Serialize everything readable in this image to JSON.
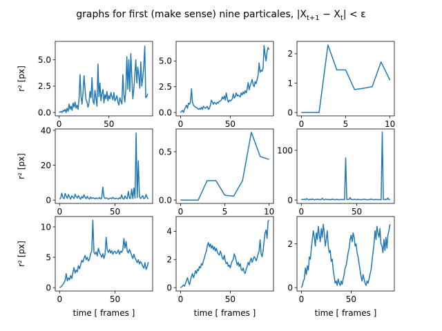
{
  "figure": {
    "title": "graphs for first (make sense) nine particales, |X",
    "title_sub1": "t+1",
    "title_mid": " − X",
    "title_sub2": "t",
    "title_end": "| < ε",
    "line_color": "#1f77b4"
  },
  "chart_data": [
    {
      "type": "line",
      "ylabel": "r² [px]",
      "xlabel": "",
      "xlim": [
        -3.9,
        93.9
      ],
      "ylim": [
        -0.32,
        6.75
      ],
      "xticks": [
        0,
        50
      ],
      "yticks": [
        0.0,
        2.5,
        5.0
      ],
      "ytick_labels": [
        "0.0",
        "2.5",
        "5.0"
      ],
      "x": [
        0,
        1,
        2,
        3,
        4,
        5,
        6,
        7,
        8,
        9,
        10,
        11,
        12,
        13,
        14,
        15,
        16,
        17,
        18,
        19,
        20,
        21,
        22,
        23,
        24,
        25,
        26,
        27,
        28,
        29,
        30,
        31,
        32,
        33,
        34,
        35,
        36,
        37,
        38,
        39,
        40,
        41,
        42,
        43,
        44,
        45,
        46,
        47,
        48,
        49,
        50,
        51,
        52,
        53,
        54,
        55,
        56,
        57,
        58,
        59,
        60,
        61,
        62,
        63,
        64,
        65,
        66,
        67,
        68,
        69,
        70,
        71,
        72,
        73,
        74,
        75,
        76,
        77,
        78,
        79,
        80,
        81,
        82,
        83,
        84,
        85,
        86,
        87,
        88,
        89
      ],
      "y": [
        0.0,
        0.05,
        0.1,
        0.0,
        0.2,
        0.1,
        0.3,
        0.0,
        0.4,
        0.1,
        0.8,
        0.3,
        0.6,
        0.2,
        0.9,
        0.5,
        1.0,
        0.4,
        0.7,
        0.3,
        1.3,
        3.6,
        1.5,
        0.8,
        1.9,
        3.5,
        2.2,
        1.2,
        1.0,
        0.5,
        0.9,
        2.0,
        1.4,
        3.3,
        1.1,
        0.8,
        2.1,
        1.3,
        0.6,
        4.6,
        1.5,
        2.8,
        1.1,
        1.8,
        2.2,
        0.9,
        1.7,
        1.3,
        2.0,
        1.1,
        1.6,
        1.3,
        1.9,
        1.5,
        1.2,
        1.9,
        1.1,
        1.3,
        1.6,
        1.0,
        0.7,
        1.4,
        1.1,
        0.8,
        3.6,
        1.7,
        1.0,
        2.2,
        5.3,
        2.2,
        5.0,
        2.0,
        5.6,
        3.4,
        1.3,
        2.2,
        3.6,
        5.0,
        2.8,
        4.3,
        3.5,
        2.3,
        4.8,
        2.5,
        3.3,
        4.4,
        6.3,
        1.4,
        1.5,
        1.8
      ]
    },
    {
      "type": "line",
      "ylabel": "",
      "xlabel": "",
      "xlim": [
        -4.45,
        93.45
      ],
      "ylim": [
        -0.33,
        6.9
      ],
      "xticks": [
        0,
        50
      ],
      "yticks": [
        0.0,
        2.5,
        5.0
      ],
      "ytick_labels": [
        "0.0",
        "2.5",
        "5.0"
      ],
      "x": [
        0,
        1,
        2,
        3,
        4,
        5,
        6,
        7,
        8,
        9,
        10,
        11,
        12,
        13,
        14,
        15,
        16,
        17,
        18,
        19,
        20,
        21,
        22,
        23,
        24,
        25,
        26,
        27,
        28,
        29,
        30,
        31,
        32,
        33,
        34,
        35,
        36,
        37,
        38,
        39,
        40,
        41,
        42,
        43,
        44,
        45,
        46,
        47,
        48,
        49,
        50,
        51,
        52,
        53,
        54,
        55,
        56,
        57,
        58,
        59,
        60,
        61,
        62,
        63,
        64,
        65,
        66,
        67,
        68,
        69,
        70,
        71,
        72,
        73,
        74,
        75,
        76,
        77,
        78,
        79,
        80,
        81,
        82,
        83,
        84,
        85,
        86,
        87,
        88,
        89
      ],
      "y": [
        0.0,
        0.1,
        0.2,
        0.0,
        0.3,
        0.5,
        0.7,
        0.4,
        0.9,
        0.8,
        1.0,
        2.3,
        1.0,
        0.7,
        0.6,
        0.5,
        0.5,
        0.4,
        0.3,
        0.4,
        0.3,
        0.5,
        0.3,
        0.6,
        0.5,
        0.4,
        0.5,
        0.6,
        0.3,
        0.4,
        0.7,
        1.2,
        1.0,
        0.8,
        1.0,
        0.9,
        0.8,
        1.0,
        0.9,
        1.1,
        1.1,
        1.2,
        1.5,
        1.3,
        1.6,
        1.2,
        1.9,
        1.3,
        1.0,
        1.2,
        1.1,
        1.2,
        1.3,
        1.8,
        1.4,
        1.5,
        1.9,
        1.6,
        1.7,
        1.6,
        1.5,
        1.9,
        1.7,
        2.0,
        1.8,
        2.1,
        1.9,
        2.3,
        2.9,
        2.2,
        2.6,
        2.9,
        3.2,
        2.7,
        2.5,
        3.0,
        2.8,
        3.2,
        3.6,
        4.8,
        3.9,
        4.1,
        4.0,
        4.3,
        6.5,
        5.6,
        5.0,
        5.9,
        6.3,
        6.1
      ]
    },
    {
      "type": "line",
      "ylabel": "",
      "xlabel": "",
      "xlim": [
        -0.5,
        10.5
      ],
      "ylim": [
        -0.115,
        2.42
      ],
      "xticks": [
        0,
        5,
        10
      ],
      "yticks": [
        0,
        1,
        2
      ],
      "ytick_labels": [
        "0",
        "1",
        "2"
      ],
      "x": [
        0,
        1,
        2,
        3,
        4,
        5,
        6,
        7,
        8,
        9,
        10
      ],
      "y": [
        0.0,
        0.0,
        0.0,
        2.3,
        1.45,
        1.45,
        0.78,
        0.82,
        0.88,
        1.72,
        1.1
      ]
    },
    {
      "type": "line",
      "ylabel": "r² [px]",
      "xlabel": "",
      "xlim": [
        -3.9,
        83.9
      ],
      "ylim": [
        -1.9,
        40.8
      ],
      "xticks": [
        0,
        50
      ],
      "yticks": [
        0,
        20,
        40
      ],
      "ytick_labels": [
        "0",
        "20",
        "40"
      ],
      "x": [
        0,
        1,
        2,
        3,
        4,
        5,
        6,
        7,
        8,
        9,
        10,
        11,
        12,
        13,
        14,
        15,
        16,
        17,
        18,
        19,
        20,
        21,
        22,
        23,
        24,
        25,
        26,
        27,
        28,
        29,
        30,
        31,
        32,
        33,
        34,
        35,
        36,
        37,
        38,
        39,
        40,
        41,
        42,
        43,
        44,
        45,
        46,
        47,
        48,
        49,
        50,
        51,
        52,
        53,
        54,
        55,
        56,
        57,
        58,
        59,
        60,
        61,
        62,
        63,
        64,
        65,
        66,
        67,
        68,
        69,
        70,
        71,
        72,
        73,
        74,
        75,
        76,
        77,
        78,
        79,
        80
      ],
      "y": [
        0.5,
        1.2,
        4.0,
        1.5,
        0.8,
        3.8,
        2.2,
        1.0,
        3.2,
        1.8,
        0.6,
        2.5,
        1.6,
        0.9,
        3.4,
        2.0,
        1.2,
        2.6,
        1.4,
        0.5,
        2.0,
        1.2,
        3.1,
        1.6,
        0.8,
        2.2,
        1.0,
        0.6,
        1.8,
        0.9,
        1.4,
        1.1,
        0.7,
        1.3,
        0.8,
        1.0,
        1.5,
        0.6,
        1.2,
        7.5,
        1.8,
        0.9,
        1.3,
        1.1,
        0.5,
        1.0,
        1.2,
        0.8,
        1.6,
        1.0,
        0.7,
        1.1,
        0.9,
        0.6,
        1.4,
        0.8,
        3.1,
        1.0,
        0.6,
        2.4,
        1.2,
        0.8,
        5.0,
        1.1,
        0.9,
        6.3,
        0.8,
        7.0,
        1.2,
        38.5,
        1.5,
        22.5,
        2.1,
        0.9,
        1.6,
        2.6,
        0.8,
        1.2,
        3.2,
        1.5,
        0.6
      ]
    },
    {
      "type": "line",
      "ylabel": "",
      "xlabel": "",
      "xlim": [
        -0.5,
        10.5
      ],
      "ylim": [
        -0.035,
        0.735
      ],
      "xticks": [
        0,
        5,
        10
      ],
      "yticks": [
        0.0,
        0.5
      ],
      "ytick_labels": [
        "0.0",
        "0.5"
      ],
      "x": [
        0,
        1,
        2,
        3,
        4,
        5,
        6,
        7,
        8,
        9,
        10
      ],
      "y": [
        0.0,
        0.0,
        0.0,
        0.2,
        0.2,
        0.05,
        0.04,
        0.2,
        0.7,
        0.45,
        0.42
      ]
    },
    {
      "type": "line",
      "ylabel": "",
      "xlabel": "",
      "xlim": [
        -3.9,
        83.9
      ],
      "ylim": [
        -6.8,
        143.0
      ],
      "xticks": [
        0,
        50
      ],
      "yticks": [
        0,
        100
      ],
      "ytick_labels": [
        "0",
        "100"
      ],
      "x": [
        0,
        1,
        2,
        3,
        4,
        5,
        6,
        7,
        8,
        9,
        10,
        11,
        12,
        13,
        14,
        15,
        16,
        17,
        18,
        19,
        20,
        21,
        22,
        23,
        24,
        25,
        26,
        27,
        28,
        29,
        30,
        31,
        32,
        33,
        34,
        35,
        36,
        37,
        38,
        39,
        40,
        41,
        42,
        43,
        44,
        45,
        46,
        47,
        48,
        49,
        50,
        51,
        52,
        53,
        54,
        55,
        56,
        57,
        58,
        59,
        60,
        61,
        62,
        63,
        64,
        65,
        66,
        67,
        68,
        69,
        70,
        71,
        72,
        73,
        74,
        75,
        76,
        77,
        78,
        79,
        80
      ],
      "y": [
        0.5,
        1.5,
        0.8,
        2.0,
        0.5,
        3.0,
        1.2,
        0.4,
        1.8,
        0.6,
        2.5,
        1.0,
        0.3,
        1.6,
        0.8,
        2.2,
        0.5,
        1.3,
        0.7,
        3.5,
        1.0,
        0.4,
        2.0,
        0.9,
        1.5,
        0.6,
        1.2,
        0.5,
        2.4,
        0.8,
        1.1,
        0.4,
        1.9,
        0.7,
        1.0,
        0.5,
        1.6,
        0.8,
        1.2,
        0.6,
        85.0,
        1.5,
        0.8,
        1.2,
        5.0,
        0.9,
        1.4,
        0.6,
        2.0,
        1.0,
        0.5,
        1.8,
        0.7,
        1.1,
        0.4,
        1.5,
        0.8,
        2.2,
        0.6,
        1.0,
        0.5,
        1.3,
        0.7,
        2.4,
        0.9,
        1.1,
        0.5,
        1.6,
        0.8,
        1.2,
        0.6,
        1.0,
        0.4,
        137.0,
        1.2,
        0.6,
        1.8,
        0.9,
        4.0,
        1.1,
        0.5
      ]
    },
    {
      "type": "line",
      "ylabel": "r² [px]",
      "xlabel": "time [ frames ]",
      "xlim": [
        -3.9,
        83.9
      ],
      "ylim": [
        -0.55,
        11.7
      ],
      "xticks": [
        0,
        50
      ],
      "yticks": [
        0,
        5,
        10
      ],
      "ytick_labels": [
        "0",
        "5",
        "10"
      ],
      "x": [
        0,
        1,
        2,
        3,
        4,
        5,
        6,
        7,
        8,
        9,
        10,
        11,
        12,
        13,
        14,
        15,
        16,
        17,
        18,
        19,
        20,
        21,
        22,
        23,
        24,
        25,
        26,
        27,
        28,
        29,
        30,
        31,
        32,
        33,
        34,
        35,
        36,
        37,
        38,
        39,
        40,
        41,
        42,
        43,
        44,
        45,
        46,
        47,
        48,
        49,
        50,
        51,
        52,
        53,
        54,
        55,
        56,
        57,
        58,
        59,
        60,
        61,
        62,
        63,
        64,
        65,
        66,
        67,
        68,
        69,
        70,
        71,
        72,
        73,
        74,
        75,
        76,
        77,
        78,
        79,
        80
      ],
      "y": [
        0.0,
        0.1,
        0.3,
        0.5,
        0.8,
        1.2,
        2.3,
        1.1,
        1.6,
        1.3,
        2.0,
        1.5,
        2.5,
        3.3,
        2.4,
        2.9,
        2.6,
        3.6,
        3.1,
        3.8,
        4.5,
        4.2,
        4.8,
        5.3,
        4.6,
        5.0,
        4.4,
        4.7,
        5.6,
        6.0,
        11.1,
        5.8,
        5.5,
        5.9,
        5.2,
        6.5,
        5.8,
        5.4,
        5.0,
        5.6,
        4.8,
        5.5,
        8.3,
        6.2,
        5.8,
        6.3,
        5.7,
        6.1,
        5.5,
        5.9,
        6.0,
        5.6,
        5.8,
        6.2,
        5.5,
        6.0,
        5.8,
        6.2,
        8.1,
        6.5,
        7.6,
        6.0,
        5.7,
        6.3,
        5.8,
        5.3,
        4.8,
        5.5,
        4.9,
        4.5,
        4.1,
        4.6,
        3.9,
        4.3,
        4.0,
        3.5,
        3.2,
        4.1,
        3.0,
        3.4,
        4.2
      ]
    },
    {
      "type": "line",
      "ylabel": "",
      "xlabel": "time [ frames ]",
      "xlim": [
        -4.45,
        93.45
      ],
      "ylim": [
        -0.24,
        5.05
      ],
      "xticks": [
        0,
        50
      ],
      "yticks": [
        0,
        2,
        4
      ],
      "ytick_labels": [
        "0",
        "2",
        "4"
      ],
      "x": [
        0,
        1,
        2,
        3,
        4,
        5,
        6,
        7,
        8,
        9,
        10,
        11,
        12,
        13,
        14,
        15,
        16,
        17,
        18,
        19,
        20,
        21,
        22,
        23,
        24,
        25,
        26,
        27,
        28,
        29,
        30,
        31,
        32,
        33,
        34,
        35,
        36,
        37,
        38,
        39,
        40,
        41,
        42,
        43,
        44,
        45,
        46,
        47,
        48,
        49,
        50,
        51,
        52,
        53,
        54,
        55,
        56,
        57,
        58,
        59,
        60,
        61,
        62,
        63,
        64,
        65,
        66,
        67,
        68,
        69,
        70,
        71,
        72,
        73,
        74,
        75,
        76,
        77,
        78,
        79,
        80,
        81,
        82,
        83,
        84,
        85,
        86,
        87,
        88,
        89
      ],
      "y": [
        0.0,
        0.05,
        0.1,
        0.2,
        0.1,
        0.3,
        0.5,
        0.7,
        0.4,
        0.2,
        0.5,
        0.8,
        1.0,
        0.7,
        0.9,
        1.2,
        1.0,
        1.3,
        1.2,
        1.5,
        1.4,
        1.7,
        1.6,
        1.9,
        2.1,
        2.4,
        2.6,
        3.0,
        3.2,
        2.9,
        3.1,
        2.8,
        3.0,
        2.7,
        2.9,
        2.6,
        2.8,
        2.5,
        2.4,
        2.3,
        2.6,
        2.4,
        2.1,
        2.0,
        2.3,
        1.9,
        1.7,
        1.8,
        1.5,
        1.6,
        1.4,
        1.7,
        1.9,
        2.0,
        2.4,
        2.2,
        1.9,
        1.6,
        1.8,
        1.5,
        1.7,
        1.3,
        1.2,
        1.4,
        1.1,
        1.0,
        1.3,
        1.5,
        1.8,
        1.6,
        1.9,
        2.1,
        1.8,
        2.0,
        2.2,
        2.1,
        1.9,
        2.1,
        2.4,
        2.6,
        3.4,
        2.4,
        2.2,
        2.6,
        3.3,
        3.9,
        4.1,
        3.5,
        4.7,
        4.8
      ]
    },
    {
      "type": "line",
      "ylabel": "",
      "xlabel": "time [ frames ]",
      "xlim": [
        -4.45,
        93.45
      ],
      "ylim": [
        -0.155,
        3.25
      ],
      "xticks": [
        0,
        50
      ],
      "yticks": [
        0,
        2
      ],
      "ytick_labels": [
        "0",
        "2"
      ],
      "x": [
        0,
        1,
        2,
        3,
        4,
        5,
        6,
        7,
        8,
        9,
        10,
        11,
        12,
        13,
        14,
        15,
        16,
        17,
        18,
        19,
        20,
        21,
        22,
        23,
        24,
        25,
        26,
        27,
        28,
        29,
        30,
        31,
        32,
        33,
        34,
        35,
        36,
        37,
        38,
        39,
        40,
        41,
        42,
        43,
        44,
        45,
        46,
        47,
        48,
        49,
        50,
        51,
        52,
        53,
        54,
        55,
        56,
        57,
        58,
        59,
        60,
        61,
        62,
        63,
        64,
        65,
        66,
        67,
        68,
        69,
        70,
        71,
        72,
        73,
        74,
        75,
        76,
        77,
        78,
        79,
        80,
        81,
        82,
        83,
        84,
        85,
        86,
        87,
        88,
        89
      ],
      "y": [
        0.0,
        0.1,
        0.3,
        0.4,
        0.9,
        0.6,
        1.0,
        0.8,
        1.4,
        1.3,
        1.8,
        2.2,
        2.6,
        2.3,
        1.9,
        2.5,
        2.2,
        2.8,
        2.4,
        2.1,
        2.7,
        2.3,
        2.9,
        2.5,
        1.9,
        2.2,
        2.6,
        1.9,
        1.6,
        1.7,
        1.2,
        1.3,
        0.8,
        0.5,
        0.2,
        0.3,
        0.1,
        0.4,
        0.2,
        0.1,
        0.3,
        0.15,
        0.4,
        0.6,
        0.9,
        1.0,
        1.3,
        1.6,
        1.8,
        2.2,
        2.4,
        2.1,
        2.5,
        2.3,
        1.9,
        2.0,
        1.6,
        1.4,
        1.1,
        0.8,
        0.5,
        0.3,
        0.6,
        0.4,
        0.2,
        0.1,
        0.3,
        0.2,
        0.4,
        0.6,
        0.8,
        1.2,
        1.6,
        2.0,
        2.6,
        2.2,
        2.8,
        2.5,
        2.3,
        2.7,
        2.0,
        1.9,
        1.6,
        2.2,
        1.7,
        2.3,
        1.8,
        2.4,
        2.6,
        2.9
      ]
    }
  ]
}
